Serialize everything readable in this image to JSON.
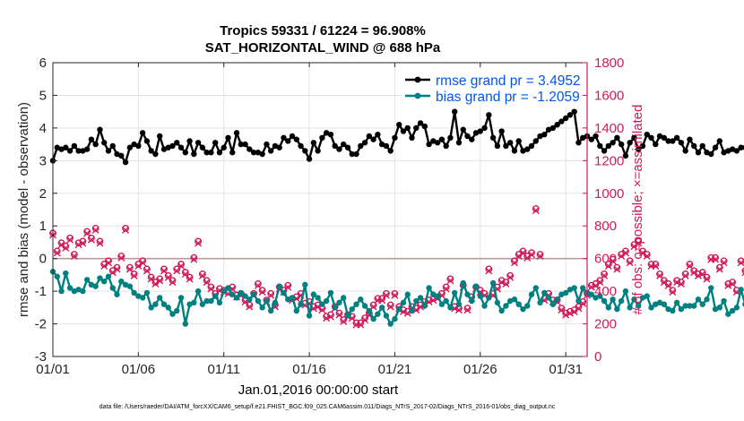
{
  "chart_data": {
    "type": "line",
    "title": "Tropics 59331 / 61224 = 96.908%",
    "subtitle": "SAT_HORIZONTAL_WIND @ 688 hPa",
    "xlabel": "Jan.01,2016 00:00:00 start",
    "ylabel": "rmse and bias (model - observation)",
    "ylabel_right": "# of obs: o=possible; ×=assimilated",
    "footnote": "data file: /Users/raeder/DAI/ATM_forcXX/CAM6_setup/f.e21.FHIST_BGC.f09_025.CAM6assim.011/Diags_NTrS_2017-02/Diags_NTrS_2016-01/obs_diag_output.nc",
    "xlim": [
      1,
      32.25
    ],
    "ylim": [
      -3,
      6
    ],
    "ylim_right": [
      0,
      1800
    ],
    "x_ticks": [
      1,
      6,
      11,
      16,
      21,
      26,
      31
    ],
    "x_tick_labels": [
      "01/01",
      "01/06",
      "01/11",
      "01/16",
      "01/21",
      "01/26",
      "01/31"
    ],
    "y_ticks": [
      -3,
      -2,
      -1,
      0,
      1,
      2,
      3,
      4,
      5,
      6
    ],
    "y_tick_labels": [
      "-3",
      "-2",
      "-1",
      "0",
      "1",
      "2",
      "3",
      "4",
      "5",
      "6"
    ],
    "y_ticks_right": [
      0,
      200,
      400,
      600,
      800,
      1000,
      1200,
      1400,
      1600,
      1800
    ],
    "y_tick_labels_right": [
      "0",
      "200",
      "400",
      "600",
      "800",
      "1000",
      "1200",
      "1400",
      "1600",
      "1800"
    ],
    "grid": true,
    "legend_placement": "top-right",
    "zero_line": true,
    "colors": {
      "rmse": "#000000",
      "bias": "#008080",
      "obs": "#d01a5a",
      "legend_text": "#0055ee"
    },
    "series": [
      {
        "name": "rmse grand pr = 3.4952",
        "key": "rmse",
        "x_start": 1,
        "x_step": 0.25,
        "values": [
          3.0,
          3.4,
          3.35,
          3.4,
          3.3,
          3.45,
          3.3,
          3.3,
          3.35,
          3.65,
          3.5,
          3.95,
          3.55,
          3.3,
          3.45,
          3.2,
          3.15,
          2.95,
          3.4,
          3.5,
          3.45,
          3.85,
          3.6,
          3.3,
          3.2,
          3.75,
          3.35,
          3.4,
          3.45,
          3.55,
          3.4,
          3.25,
          3.6,
          3.2,
          3.55,
          3.4,
          3.25,
          3.25,
          3.55,
          3.25,
          3.4,
          3.7,
          3.25,
          3.85,
          3.5,
          3.5,
          3.35,
          3.25,
          3.25,
          3.2,
          3.5,
          3.3,
          3.45,
          3.4,
          3.7,
          3.6,
          3.75,
          3.65,
          3.45,
          3.3,
          3.05,
          3.55,
          3.3,
          3.7,
          3.85,
          3.8,
          3.45,
          3.35,
          3.5,
          3.4,
          3.2,
          3.2,
          3.45,
          3.55,
          3.75,
          3.65,
          3.8,
          3.5,
          3.45,
          3.3,
          3.7,
          4.1,
          3.9,
          4.0,
          3.7,
          4.0,
          4.15,
          4.05,
          3.5,
          3.6,
          3.55,
          3.65,
          3.45,
          3.7,
          4.5,
          3.55,
          3.95,
          3.75,
          3.65,
          3.85,
          3.9,
          4.0,
          4.4,
          3.7,
          3.45,
          3.9,
          3.45,
          3.55,
          3.3,
          3.6,
          3.3,
          3.35,
          3.45,
          3.6,
          3.75,
          3.8,
          3.95,
          4.0,
          4.1,
          4.2,
          4.3,
          4.4,
          4.5,
          3.55,
          3.7,
          3.75,
          3.65,
          3.75,
          3.45,
          3.3,
          3.45,
          3.55,
          3.7,
          3.5,
          3.15,
          3.55,
          3.7,
          3.35,
          3.45,
          3.8,
          3.7,
          3.5,
          3.75,
          3.7,
          3.6,
          3.6,
          3.7,
          3.55,
          3.3,
          3.65,
          3.45,
          3.25,
          3.45,
          3.25,
          3.2,
          3.4,
          3.6,
          3.25,
          3.3,
          3.35,
          3.3,
          3.4,
          3.4,
          3.65,
          3.2
        ]
      },
      {
        "name": "bias grand pr = -1.2059",
        "key": "bias",
        "x_start": 1,
        "x_step": 0.25,
        "values": [
          -0.4,
          -0.55,
          -1.0,
          -0.45,
          -0.9,
          -1.0,
          -0.95,
          -1.0,
          -0.65,
          -0.8,
          -0.85,
          -0.6,
          -0.7,
          -0.55,
          -0.9,
          -1.1,
          -0.7,
          -0.8,
          -0.85,
          -1.05,
          -1.15,
          -1.2,
          -1.05,
          -1.5,
          -1.4,
          -1.2,
          -1.4,
          -1.5,
          -1.7,
          -1.6,
          -1.2,
          -2.0,
          -1.4,
          -1.35,
          -1.0,
          -1.4,
          -1.3,
          -1.3,
          -1.15,
          -1.35,
          -1.0,
          -0.9,
          -1.1,
          -1.2,
          -1.05,
          -1.15,
          -1.25,
          -1.1,
          -1.3,
          -1.5,
          -1.3,
          -1.6,
          -1.35,
          -0.85,
          -1.05,
          -1.25,
          -1.2,
          -1.6,
          -1.4,
          -0.8,
          -1.75,
          -1.1,
          -1.2,
          -1.4,
          -1.3,
          -1.05,
          -1.5,
          -1.35,
          -1.2,
          -1.75,
          -1.55,
          -1.4,
          -1.25,
          -1.45,
          -1.6,
          -1.85,
          -1.7,
          -1.5,
          -1.75,
          -2.0,
          -1.85,
          -1.55,
          -1.35,
          -1.1,
          -1.6,
          -1.3,
          -1.2,
          -1.45,
          -0.9,
          -1.1,
          -1.15,
          -1.4,
          -1.3,
          -1.5,
          -1.05,
          -1.4,
          -0.75,
          -1.1,
          -1.3,
          -0.85,
          -1.15,
          -1.45,
          -1.2,
          -0.75,
          -1.35,
          -1.6,
          -1.45,
          -1.3,
          -1.25,
          -1.4,
          -1.55,
          -1.45,
          -1.1,
          -0.9,
          -1.35,
          -1.05,
          -1.2,
          -1.4,
          -1.25,
          -1.1,
          -1.05,
          -0.95,
          -0.9,
          -1.3,
          -0.9,
          -1.05,
          -1.1,
          -1.2,
          -1.15,
          -1.3,
          -1.5,
          -1.25,
          -1.55,
          -1.3,
          -1.0,
          -1.5,
          -1.25,
          -1.45,
          -1.2,
          -1.15,
          -1.5,
          -1.4,
          -1.35,
          -1.4,
          -1.55,
          -1.6,
          -1.35,
          -1.55,
          -1.45,
          -1.45,
          -1.45,
          -1.25,
          -1.4,
          -1.25,
          -0.9,
          -1.55,
          -1.5,
          -1.3,
          -1.7,
          -1.6,
          -1.5,
          -0.95,
          -1.4,
          -1.6,
          -1.7,
          -1.7,
          -1.05
        ]
      },
      {
        "name": "# of obs possible / assimilated",
        "key": "obs",
        "x_start": 1,
        "x_step": 0.25,
        "values": [
          750,
          640,
          690,
          670,
          720,
          620,
          690,
          700,
          760,
          720,
          780,
          700,
          560,
          580,
          520,
          540,
          610,
          780,
          540,
          500,
          560,
          580,
          530,
          480,
          450,
          470,
          530,
          490,
          460,
          530,
          560,
          510,
          480,
          600,
          700,
          500,
          460,
          420,
          380,
          410,
          400,
          390,
          420,
          370,
          380,
          340,
          310,
          380,
          440,
          400,
          340,
          380,
          310,
          420,
          400,
          430,
          350,
          360,
          380,
          320,
          330,
          300,
          310,
          290,
          240,
          250,
          300,
          260,
          220,
          250,
          240,
          200,
          200,
          230,
          260,
          310,
          350,
          350,
          380,
          310,
          380,
          300,
          280,
          270,
          300,
          290,
          310,
          330,
          340,
          350,
          360,
          380,
          420,
          470,
          300,
          290,
          430,
          290,
          360,
          420,
          400,
          380,
          530,
          380,
          420,
          460,
          450,
          490,
          580,
          620,
          640,
          610,
          630,
          900,
          620,
          350,
          380,
          340,
          340,
          290,
          260,
          270,
          280,
          300,
          330,
          380,
          430,
          440,
          460,
          500,
          560,
          590,
          540,
          620,
          640,
          580,
          680,
          700,
          640,
          620,
          560,
          560,
          500,
          460,
          440,
          400,
          460,
          450,
          500,
          560,
          520,
          500,
          510,
          480,
          600,
          600,
          540,
          580,
          440,
          450,
          400,
          580,
          520,
          720,
          960,
          790,
          0
        ]
      }
    ]
  },
  "legend": {
    "rmse_label": "rmse grand pr = 3.4952",
    "bias_label": "bias grand pr = -1.2059"
  }
}
